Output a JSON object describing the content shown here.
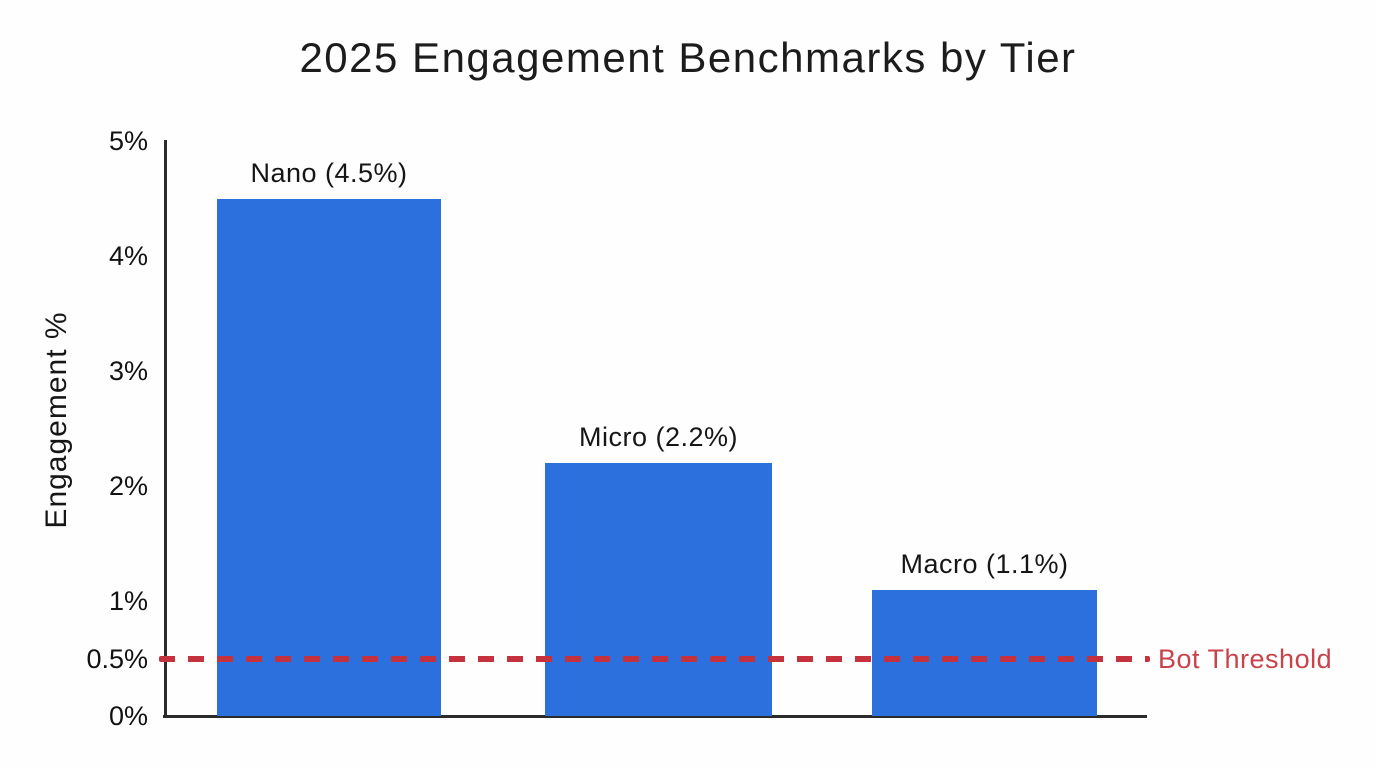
{
  "title": "2025 Engagement Benchmarks by Tier",
  "colors": {
    "bar": "#2b70dc",
    "threshold_line": "#c5323d",
    "threshold_text": "#c8434b",
    "axis": "#2b2b2b",
    "text": "#1c1c1c",
    "background": "#fefefe"
  },
  "chart_data": {
    "type": "bar",
    "title": "2025 Engagement Benchmarks by Tier",
    "xlabel": "",
    "ylabel": "Engagement %",
    "ylim": [
      0,
      5
    ],
    "grid": false,
    "legend": "none",
    "categories": [
      "Nano",
      "Micro",
      "Macro"
    ],
    "values": [
      4.5,
      2.2,
      1.1
    ],
    "bar_labels": [
      "Nano (4.5%)",
      "Micro (2.2%)",
      "Macro (1.1%)"
    ],
    "yticks": [
      {
        "value": 0,
        "label": "0%"
      },
      {
        "value": 0.5,
        "label": "0.5%"
      },
      {
        "value": 1,
        "label": "1%"
      },
      {
        "value": 2,
        "label": "2%"
      },
      {
        "value": 3,
        "label": "3%"
      },
      {
        "value": 4,
        "label": "4%"
      },
      {
        "value": 5,
        "label": "5%"
      }
    ],
    "threshold_line": {
      "value": 0.5,
      "label": "Bot Threshold",
      "style": "dashed"
    }
  }
}
